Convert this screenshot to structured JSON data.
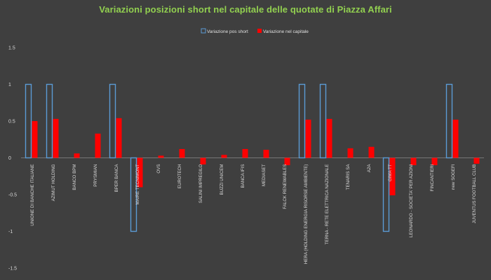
{
  "chart_data": {
    "type": "bar",
    "title": "Variazioni posizioni short nel capitale delle quotate di Piazza Affari",
    "legend_position": "top-center",
    "ylim": [
      -1.5,
      1.5
    ],
    "y_ticks": [
      "1.5",
      "1",
      "0.5",
      "0",
      "-0.5",
      "-1",
      "-1.5"
    ],
    "y_tick_values": [
      1.5,
      1,
      0.5,
      0,
      -0.5,
      -1,
      -1.5
    ],
    "grid": false,
    "categories": [
      "UNIONE DI BANCHE ITALIANE",
      "AZIMUT HOLDING",
      "BANCO BPM",
      "PRYSMIAN",
      "BPER BANCA",
      "MAIRE TECNIMONT",
      "OVS",
      "EUROTECH",
      "SALINI IMPREGILO",
      "BUZZI UNICEM",
      "BANCA IFIS",
      "MEDIASET",
      "FALCK RENEWABLES",
      "HERA    (HOLDING ENERGIA RISORSE AMBIENTE)",
      "TERNA - RETE ELETTRICA NAZIONALE",
      "TENARIS SA",
      "A2A",
      "GIMA TT",
      "LEONARDO - SOCIETA' PER AZIONI",
      "FINCANTIERI",
      "new SOGEFI",
      "JUVENTUS FOOTBALL CLUB"
    ],
    "series": [
      {
        "name": "Variazione pos short",
        "color": "#5b9bd5",
        "style": "outline",
        "values": [
          1,
          1,
          0,
          0,
          1,
          -1,
          0,
          0,
          0,
          0,
          0,
          0,
          0,
          1,
          1,
          0,
          0,
          -1,
          0,
          0,
          1,
          0
        ]
      },
      {
        "name": "Variazione nel capitale",
        "color": "#ff0000",
        "style": "filled",
        "values": [
          0.5,
          0.53,
          0.06,
          0.33,
          0.54,
          -0.4,
          0.03,
          0.12,
          -0.09,
          0.04,
          0.12,
          0.11,
          -0.1,
          0.52,
          0.53,
          0.13,
          0.15,
          -0.51,
          -0.1,
          -0.1,
          0.52,
          -0.08
        ]
      }
    ]
  }
}
